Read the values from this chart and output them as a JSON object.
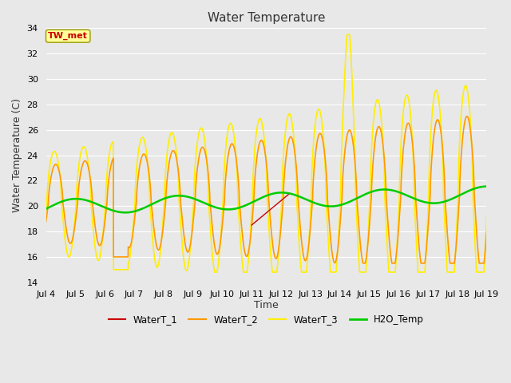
{
  "title": "Water Temperature",
  "xlabel": "Time",
  "ylabel": "Water Temperature (C)",
  "ylim": [
    14,
    34
  ],
  "yticks": [
    14,
    16,
    18,
    20,
    22,
    24,
    26,
    28,
    30,
    32,
    34
  ],
  "x_labels": [
    "Jul 4",
    "Jul 5",
    "Jul 6",
    "Jul 7",
    "Jul 8",
    "Jul 9",
    "Jul 10",
    "Jul 11",
    "Jul 12",
    "Jul 13",
    "Jul 14",
    "Jul 15",
    "Jul 16",
    "Jul 17",
    "Jul 18",
    "Jul 19"
  ],
  "background_color": "#e8e8e8",
  "plot_bg_color": "#e8e8e8",
  "grid_color": "#ffffff",
  "annotation_text": "TW_met",
  "annotation_bg": "#ffff99",
  "annotation_border": "#999900",
  "annotation_text_color": "#cc0000",
  "colors": {
    "WaterT_1": "#cc0000",
    "WaterT_2": "#ff9900",
    "WaterT_3": "#ffee00",
    "H2O_Temp": "#00cc00"
  },
  "linewidths": {
    "WaterT_1": 1.0,
    "WaterT_2": 1.2,
    "WaterT_3": 1.2,
    "H2O_Temp": 1.8
  },
  "figsize": [
    6.4,
    4.8
  ],
  "dpi": 100
}
